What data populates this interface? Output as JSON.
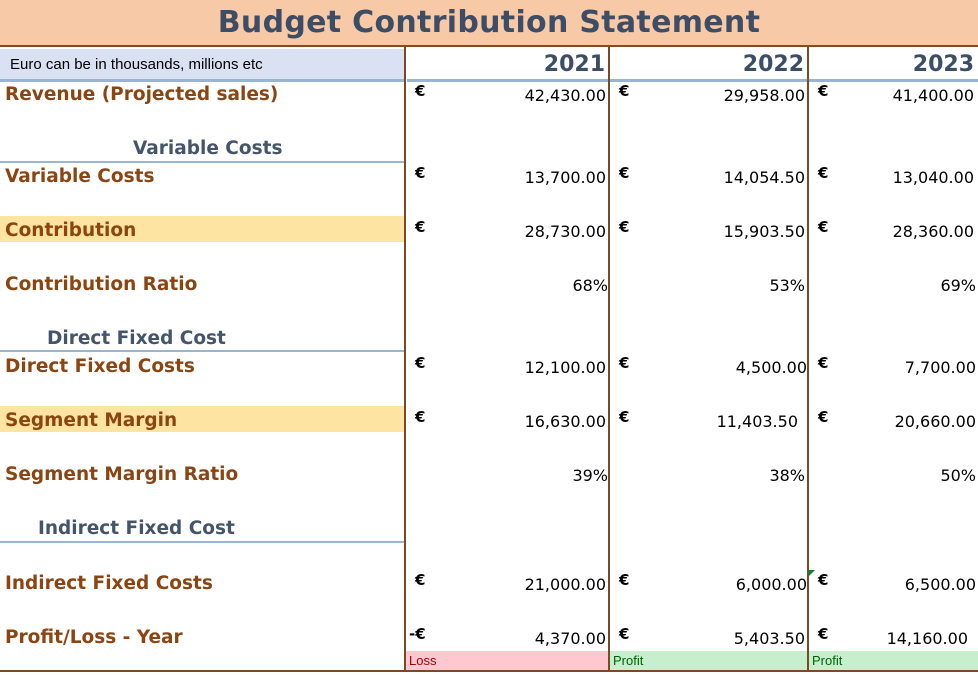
{
  "title": "Budget Contribution Statement",
  "note": "Euro can be in thousands, millions etc",
  "years": [
    "2021",
    "2022",
    "2023"
  ],
  "currency_symbol": "€",
  "loss_symbol": "-€",
  "rows": {
    "revenue": {
      "label": "Revenue (Projected sales)",
      "values": [
        "42,430.00",
        "29,958.00",
        "41,400.00"
      ]
    },
    "variable_costs": {
      "label": "Variable Costs",
      "values": [
        "13,700.00",
        "14,054.50",
        "13,040.00"
      ]
    },
    "contribution": {
      "label": "Contribution",
      "values": [
        "28,730.00",
        "15,903.50",
        "28,360.00"
      ]
    },
    "contribution_ratio": {
      "label": "Contribution Ratio",
      "values": [
        "68%",
        "53%",
        "69%"
      ]
    },
    "direct_fixed_costs": {
      "label": "Direct Fixed Costs",
      "values": [
        "12,100.00",
        "4,500.00",
        "7,700.00"
      ]
    },
    "segment_margin": {
      "label": "Segment Margin",
      "values": [
        "16,630.00",
        "11,403.50",
        "20,660.00"
      ]
    },
    "segment_margin_ratio": {
      "label": "Segment Margin Ratio",
      "values": [
        "39%",
        "38%",
        "50%"
      ]
    },
    "indirect_fixed_costs": {
      "label": "Indirect Fixed Costs",
      "values": [
        "21,000.00",
        "6,000.00",
        "6,500.00"
      ]
    },
    "profit_loss": {
      "label": "Profit/Loss - Year",
      "values": [
        "4,370.00",
        "5,403.50",
        "14,160.00"
      ]
    }
  },
  "sections": {
    "variable": "Variable Costs",
    "direct_fixed": "Direct Fixed Cost",
    "indirect_fixed": "Indirect Fixed Cost"
  },
  "status": [
    "Loss",
    "Profit",
    "Profit"
  ],
  "colors": {
    "title_bg": "#f8c9a6",
    "title_text": "#3e4d66",
    "label_text": "#8b4513",
    "section_text": "#44546a",
    "highlight": "#fde4a2",
    "loss_bg": "#ffc7ce",
    "loss_text": "#9c0006",
    "profit_bg": "#c6efce",
    "profit_text": "#006100"
  }
}
